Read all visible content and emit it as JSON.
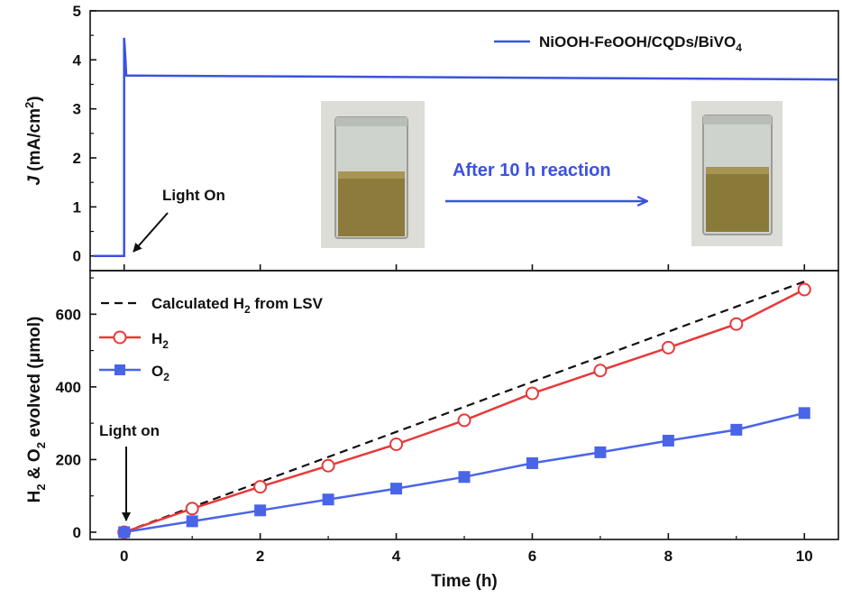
{
  "chart_data": [
    {
      "type": "line",
      "panel": "top",
      "xlim": [
        -0.5,
        10.5
      ],
      "ylim": [
        -0.3,
        5
      ],
      "y_ticks": [
        0,
        1,
        2,
        3,
        4,
        5
      ],
      "ylabel": {
        "italic": "J",
        "text": " (mA/cm",
        "sup": "2",
        "close": ")"
      },
      "series": [
        {
          "name": "NiOOH-FeOOH/CQDs/BiVO4",
          "legend_parts": {
            "main": "NiOOH-FeOOH/CQDs/BiVO",
            "sub": "4"
          },
          "color": "#3b52e0",
          "x": [
            -0.45,
            0.0,
            0.0,
            0.02,
            0.03,
            0.05,
            10.5
          ],
          "y": [
            0.0,
            0.0,
            4.45,
            4.0,
            3.68,
            3.68,
            3.6
          ]
        }
      ],
      "annotations": {
        "light_on": "Light On",
        "arrow_text": "After 10 h reaction",
        "arrow_color": "#3b52e0"
      }
    },
    {
      "type": "line",
      "panel": "bottom",
      "xlabel": "Time (h)",
      "xlim": [
        -0.5,
        10.5
      ],
      "ylim": [
        -20,
        720
      ],
      "x_ticks": [
        0,
        2,
        4,
        6,
        8,
        10
      ],
      "y_ticks": [
        0,
        200,
        400,
        600
      ],
      "ylabel": {
        "a": "H",
        "a_sub": "2",
        "b": " & O",
        "b_sub": "2",
        "c": " evolved (μmol)"
      },
      "series": [
        {
          "name": "Calculated H2 from LSV",
          "legend_parts": {
            "main": "Calculated H",
            "sub": "2",
            "tail": " from LSV"
          },
          "style": "dashed",
          "color": "#111111",
          "x": [
            0,
            10
          ],
          "y": [
            0,
            690
          ]
        },
        {
          "name": "H2",
          "legend_parts": {
            "main": "H",
            "sub": "2"
          },
          "marker": "open-circle",
          "color": "#e8393a",
          "x": [
            0,
            1,
            2,
            3,
            4,
            5,
            6,
            7,
            8,
            9,
            10
          ],
          "y": [
            0,
            65,
            125,
            183,
            242,
            308,
            382,
            445,
            508,
            573,
            668
          ]
        },
        {
          "name": "O2",
          "legend_parts": {
            "main": "O",
            "sub": "2"
          },
          "marker": "filled-square",
          "color": "#4a64e8",
          "x": [
            0,
            1,
            2,
            3,
            4,
            5,
            6,
            7,
            8,
            9,
            10
          ],
          "y": [
            0,
            30,
            60,
            90,
            120,
            152,
            190,
            220,
            252,
            282,
            328
          ]
        }
      ],
      "annotations": {
        "light_on": "Light on"
      }
    }
  ]
}
